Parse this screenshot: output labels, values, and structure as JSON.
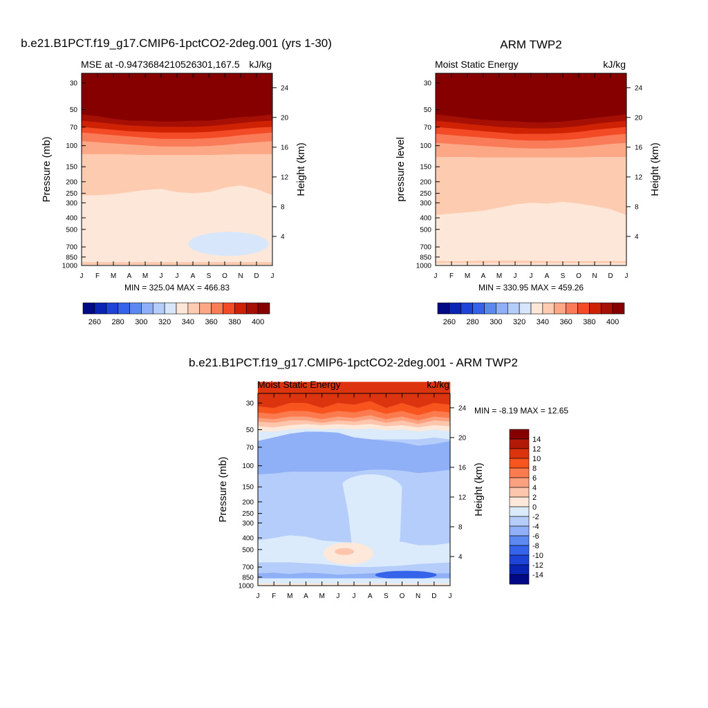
{
  "chart_data": [
    {
      "type": "heatmap",
      "title": "b.e21.B1PCT.f19_g17.CMIP6-1pctCO2-2deg.001 (yrs 1-30)",
      "subtitle_left": "MSE at -0.9473684210526301,167.5",
      "subtitle_right": "kJ/kg",
      "ylabel": "Pressure (mb)",
      "y2label": "Height (km)",
      "x_ticks": [
        "J",
        "F",
        "M",
        "A",
        "M",
        "J",
        "J",
        "A",
        "S",
        "O",
        "N",
        "D",
        "J"
      ],
      "y_ticks": [
        30,
        50,
        70,
        100,
        150,
        200,
        250,
        300,
        400,
        500,
        700,
        850,
        1000
      ],
      "y2_ticks": [
        24,
        20,
        16,
        12,
        8,
        4
      ],
      "stats": "MIN = 325.04 MAX = 466.83",
      "levels": [
        260,
        270,
        280,
        290,
        300,
        310,
        320,
        330,
        340,
        350,
        360,
        370,
        380,
        390,
        400
      ],
      "colorbar_labels": [
        260,
        280,
        300,
        320,
        340,
        360,
        380,
        400
      ],
      "colorbar_colors": [
        "#000a87",
        "#0a24b4",
        "#1d43d7",
        "#3563e9",
        "#5b89f0",
        "#8fb0f6",
        "#b5cdfa",
        "#d8e6fc",
        "#fde7d8",
        "#fdcbb0",
        "#fca786",
        "#fa7b58",
        "#f24b26",
        "#cf2205",
        "#a50f04",
        "#870000"
      ]
    },
    {
      "type": "heatmap",
      "title": "ARM TWP2",
      "subtitle_left": "Moist Static Energy",
      "subtitle_right": "kJ/kg",
      "ylabel": "pressure level",
      "y2label": "Height (km)",
      "x_ticks": [
        "J",
        "F",
        "M",
        "A",
        "M",
        "J",
        "J",
        "A",
        "S",
        "O",
        "N",
        "D",
        "J"
      ],
      "y_ticks": [
        30,
        50,
        70,
        100,
        150,
        200,
        250,
        300,
        400,
        500,
        700,
        850,
        1000
      ],
      "y2_ticks": [
        24,
        20,
        16,
        12,
        8,
        4
      ],
      "stats": "MIN = 330.95 MAX = 459.26",
      "levels": [
        260,
        270,
        280,
        290,
        300,
        310,
        320,
        330,
        340,
        350,
        360,
        370,
        380,
        390,
        400
      ],
      "colorbar_labels": [
        260,
        280,
        300,
        320,
        340,
        360,
        380,
        400
      ],
      "colorbar_colors": [
        "#000a87",
        "#0a24b4",
        "#1d43d7",
        "#3563e9",
        "#5b89f0",
        "#8fb0f6",
        "#b5cdfa",
        "#d8e6fc",
        "#fde7d8",
        "#fdcbb0",
        "#fca786",
        "#fa7b58",
        "#f24b26",
        "#cf2205",
        "#a50f04",
        "#870000"
      ]
    },
    {
      "type": "heatmap",
      "title": "b.e21.B1PCT.f19_g17.CMIP6-1pctCO2-2deg.001 - ARM TWP2",
      "subtitle_left": "Moist Static Energy",
      "subtitle_right": "kJ/kg",
      "ylabel": "Pressure (mb)",
      "y2label": "Height (km)",
      "x_ticks": [
        "J",
        "F",
        "M",
        "A",
        "M",
        "J",
        "J",
        "A",
        "S",
        "O",
        "N",
        "D",
        "J"
      ],
      "y_ticks": [
        30,
        50,
        70,
        100,
        150,
        200,
        250,
        300,
        400,
        500,
        700,
        850,
        1000
      ],
      "y2_ticks": [
        24,
        20,
        16,
        12,
        8,
        4
      ],
      "stats": "MIN =  -8.19 MAX =  12.65",
      "colorbar_labels": [
        "14",
        "12",
        "10",
        "8",
        "6",
        "4",
        "2",
        "0",
        "-2",
        "-4",
        "-6",
        "-8",
        "-10",
        "-12",
        "-14"
      ],
      "colorbar_colors": [
        "#870000",
        "#b21a07",
        "#dd3410",
        "#f7541e",
        "#fb7b4f",
        "#fca180",
        "#fdc6ac",
        "#fde8da",
        "#dcebfb",
        "#b5cdfa",
        "#8fb0f6",
        "#5b89f0",
        "#3563e9",
        "#1d43d7",
        "#0a24b4",
        "#000a87"
      ]
    }
  ]
}
